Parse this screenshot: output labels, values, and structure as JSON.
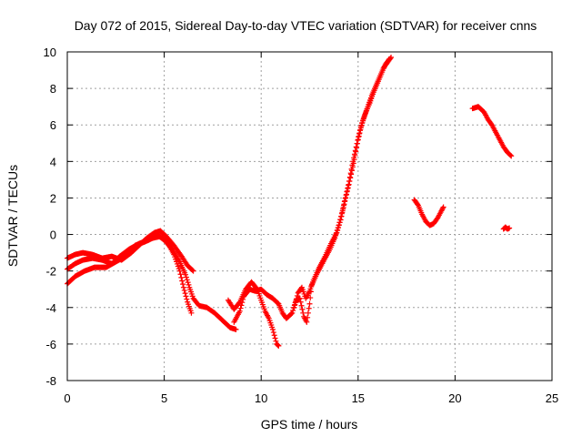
{
  "chart_data": {
    "type": "scatter",
    "title": "Day 072 of 2015, Sidereal Day-to-day VTEC variation (SDTVAR) for receiver cnns",
    "xlabel": "GPS time / hours",
    "ylabel": "SDTVAR / TECUs",
    "xlim": [
      0,
      25
    ],
    "ylim": [
      -8,
      10
    ],
    "x_ticks": [
      "0",
      "5",
      "10",
      "15",
      "20",
      "25"
    ],
    "y_ticks": [
      "-8",
      "-6",
      "-4",
      "-2",
      "0",
      "2",
      "4",
      "6",
      "8",
      "10"
    ],
    "grid": true,
    "marker": "plus",
    "color": "#ff0000",
    "series": [
      {
        "traces": [
          [
            [
              0.0,
              -2.7
            ],
            [
              0.4,
              -2.3
            ],
            [
              0.9,
              -2.0
            ],
            [
              1.4,
              -1.8
            ],
            [
              2.0,
              -1.8
            ],
            [
              2.5,
              -1.5
            ],
            [
              3.0,
              -1.2
            ],
            [
              3.5,
              -0.6
            ],
            [
              4.0,
              -0.4
            ],
            [
              4.4,
              -0.2
            ],
            [
              4.8,
              -0.1
            ],
            [
              5.2,
              -0.5
            ],
            [
              5.5,
              -1.1
            ],
            [
              5.8,
              -2.0
            ],
            [
              6.0,
              -2.9
            ],
            [
              6.2,
              -3.7
            ],
            [
              6.4,
              -4.3
            ]
          ],
          [
            [
              0.0,
              -1.9
            ],
            [
              0.4,
              -1.6
            ],
            [
              0.8,
              -1.4
            ],
            [
              1.3,
              -1.3
            ],
            [
              1.8,
              -1.4
            ],
            [
              2.3,
              -1.6
            ],
            [
              2.7,
              -1.2
            ],
            [
              3.2,
              -0.8
            ],
            [
              3.7,
              -0.5
            ],
            [
              4.2,
              -0.3
            ],
            [
              4.6,
              0.0
            ],
            [
              5.0,
              -0.3
            ],
            [
              5.4,
              -0.8
            ],
            [
              5.8,
              -1.5
            ],
            [
              6.1,
              -2.2
            ],
            [
              6.3,
              -2.9
            ],
            [
              6.5,
              -3.5
            ],
            [
              6.8,
              -3.9
            ],
            [
              7.2,
              -4.0
            ],
            [
              7.6,
              -4.3
            ],
            [
              8.0,
              -4.7
            ],
            [
              8.4,
              -5.1
            ],
            [
              8.7,
              -5.2
            ]
          ],
          [
            [
              0.0,
              -1.3
            ],
            [
              0.4,
              -1.1
            ],
            [
              0.8,
              -1.0
            ],
            [
              1.3,
              -1.1
            ],
            [
              1.8,
              -1.3
            ],
            [
              2.3,
              -1.2
            ],
            [
              2.8,
              -1.4
            ],
            [
              3.3,
              -1.0
            ],
            [
              3.7,
              -0.6
            ],
            [
              4.1,
              -0.2
            ],
            [
              4.5,
              0.1
            ],
            [
              4.8,
              0.2
            ],
            [
              5.1,
              -0.1
            ],
            [
              5.5,
              -0.6
            ],
            [
              5.9,
              -1.2
            ],
            [
              6.2,
              -1.7
            ],
            [
              6.5,
              -2.0
            ]
          ],
          [
            [
              8.3,
              -3.6
            ],
            [
              8.6,
              -4.1
            ],
            [
              8.9,
              -3.7
            ],
            [
              9.2,
              -3.0
            ],
            [
              9.5,
              -2.6
            ],
            [
              9.8,
              -3.0
            ],
            [
              10.0,
              -3.6
            ],
            [
              10.2,
              -4.2
            ],
            [
              10.4,
              -4.6
            ],
            [
              10.6,
              -5.2
            ],
            [
              10.8,
              -6.0
            ],
            [
              10.9,
              -6.1
            ]
          ],
          [
            [
              8.6,
              -4.8
            ],
            [
              8.9,
              -4.2
            ],
            [
              9.1,
              -3.4
            ],
            [
              9.4,
              -3.0
            ],
            [
              9.7,
              -3.1
            ],
            [
              10.0,
              -3.0
            ],
            [
              10.3,
              -3.3
            ],
            [
              10.6,
              -3.5
            ],
            [
              10.9,
              -3.8
            ],
            [
              11.1,
              -4.3
            ],
            [
              11.3,
              -4.6
            ],
            [
              11.6,
              -4.3
            ],
            [
              11.8,
              -3.6
            ],
            [
              12.0,
              -3.5
            ],
            [
              12.2,
              -4.5
            ],
            [
              12.35,
              -4.8
            ],
            [
              12.5,
              -3.8
            ],
            [
              12.6,
              -2.8
            ],
            [
              12.9,
              -2.1
            ],
            [
              13.2,
              -1.5
            ],
            [
              13.5,
              -0.9
            ],
            [
              13.8,
              -0.2
            ],
            [
              14.0,
              0.5
            ],
            [
              14.2,
              1.3
            ],
            [
              14.4,
              2.2
            ],
            [
              14.6,
              3.1
            ],
            [
              14.8,
              4.1
            ],
            [
              15.0,
              5.2
            ],
            [
              15.2,
              6.1
            ],
            [
              15.4,
              6.7
            ],
            [
              15.6,
              7.2
            ],
            [
              15.8,
              7.8
            ],
            [
              16.0,
              8.3
            ],
            [
              16.2,
              8.8
            ],
            [
              16.4,
              9.3
            ],
            [
              16.6,
              9.6
            ]
          ],
          [
            [
              11.7,
              -4.0
            ],
            [
              11.9,
              -3.2
            ],
            [
              12.1,
              -2.9
            ],
            [
              12.3,
              -3.5
            ],
            [
              12.5,
              -3.1
            ],
            [
              12.7,
              -2.5
            ],
            [
              13.0,
              -1.8
            ],
            [
              13.3,
              -1.2
            ],
            [
              13.6,
              -0.5
            ],
            [
              13.9,
              0.1
            ],
            [
              14.1,
              0.8
            ],
            [
              14.3,
              1.8
            ],
            [
              14.5,
              2.7
            ],
            [
              14.7,
              3.8
            ],
            [
              14.9,
              4.8
            ],
            [
              15.1,
              5.7
            ],
            [
              15.3,
              6.4
            ],
            [
              15.5,
              7.0
            ],
            [
              15.7,
              7.6
            ],
            [
              15.9,
              8.1
            ],
            [
              16.1,
              8.6
            ],
            [
              16.3,
              9.1
            ],
            [
              16.5,
              9.4
            ],
            [
              16.7,
              9.7
            ]
          ],
          [
            [
              17.9,
              1.9
            ],
            [
              18.1,
              1.6
            ],
            [
              18.3,
              1.1
            ],
            [
              18.5,
              0.7
            ],
            [
              18.7,
              0.5
            ],
            [
              18.9,
              0.6
            ],
            [
              19.1,
              0.9
            ],
            [
              19.3,
              1.3
            ],
            [
              19.4,
              1.5
            ]
          ],
          [
            [
              20.9,
              6.9
            ],
            [
              21.2,
              7.0
            ],
            [
              21.5,
              6.7
            ],
            [
              21.7,
              6.3
            ],
            [
              21.9,
              6.0
            ],
            [
              22.1,
              5.6
            ],
            [
              22.3,
              5.2
            ],
            [
              22.5,
              4.8
            ],
            [
              22.7,
              4.5
            ],
            [
              22.9,
              4.3
            ]
          ],
          [
            [
              22.5,
              0.3
            ],
            [
              22.6,
              0.4
            ],
            [
              22.7,
              0.3
            ],
            [
              22.8,
              0.35
            ]
          ]
        ]
      }
    ]
  }
}
